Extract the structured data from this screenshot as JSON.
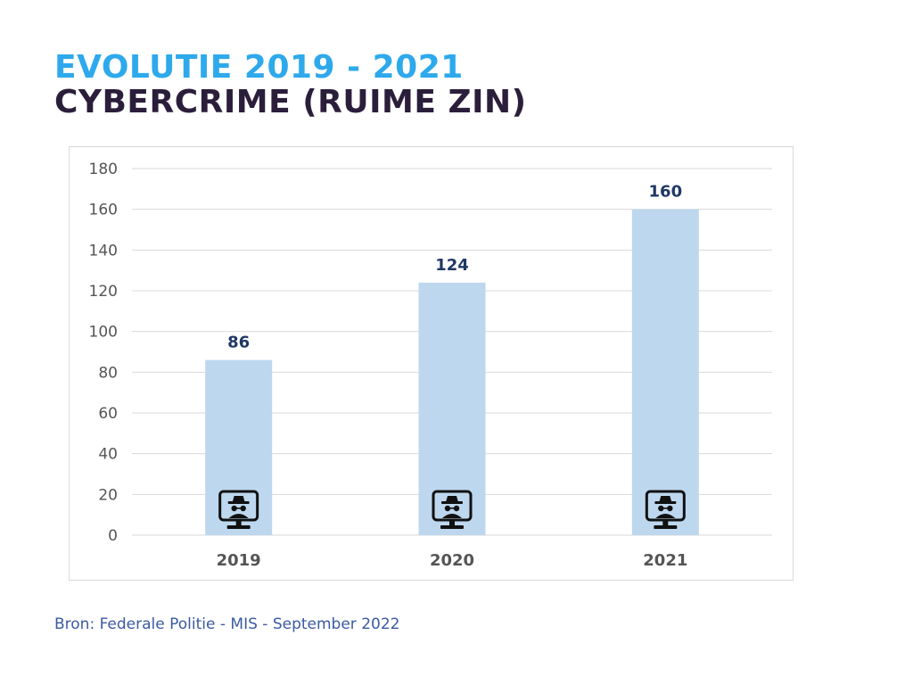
{
  "title_line1": "EVOLUTIE 2019 - 2021",
  "title_line2": "CYBERCRIME (RUIME ZIN)",
  "source": "Bron: Federale Politie - MIS - September 2022",
  "colors": {
    "title1": "#2EA9EC",
    "title2": "#2B1E3B",
    "bar": "#BDD7EE",
    "data_label": "#1F3864",
    "grid": "#D9D9D9",
    "icon": "#111111"
  },
  "icon": "hacker-monitor-icon",
  "chart_data": {
    "type": "bar",
    "title": "",
    "xlabel": "",
    "ylabel": "",
    "categories": [
      "2019",
      "2020",
      "2021"
    ],
    "values": [
      86,
      124,
      160
    ],
    "ylim": [
      0,
      180
    ],
    "yticks": [
      0,
      20,
      40,
      60,
      80,
      100,
      120,
      140,
      160,
      180
    ],
    "grid": true,
    "legend": "none"
  }
}
